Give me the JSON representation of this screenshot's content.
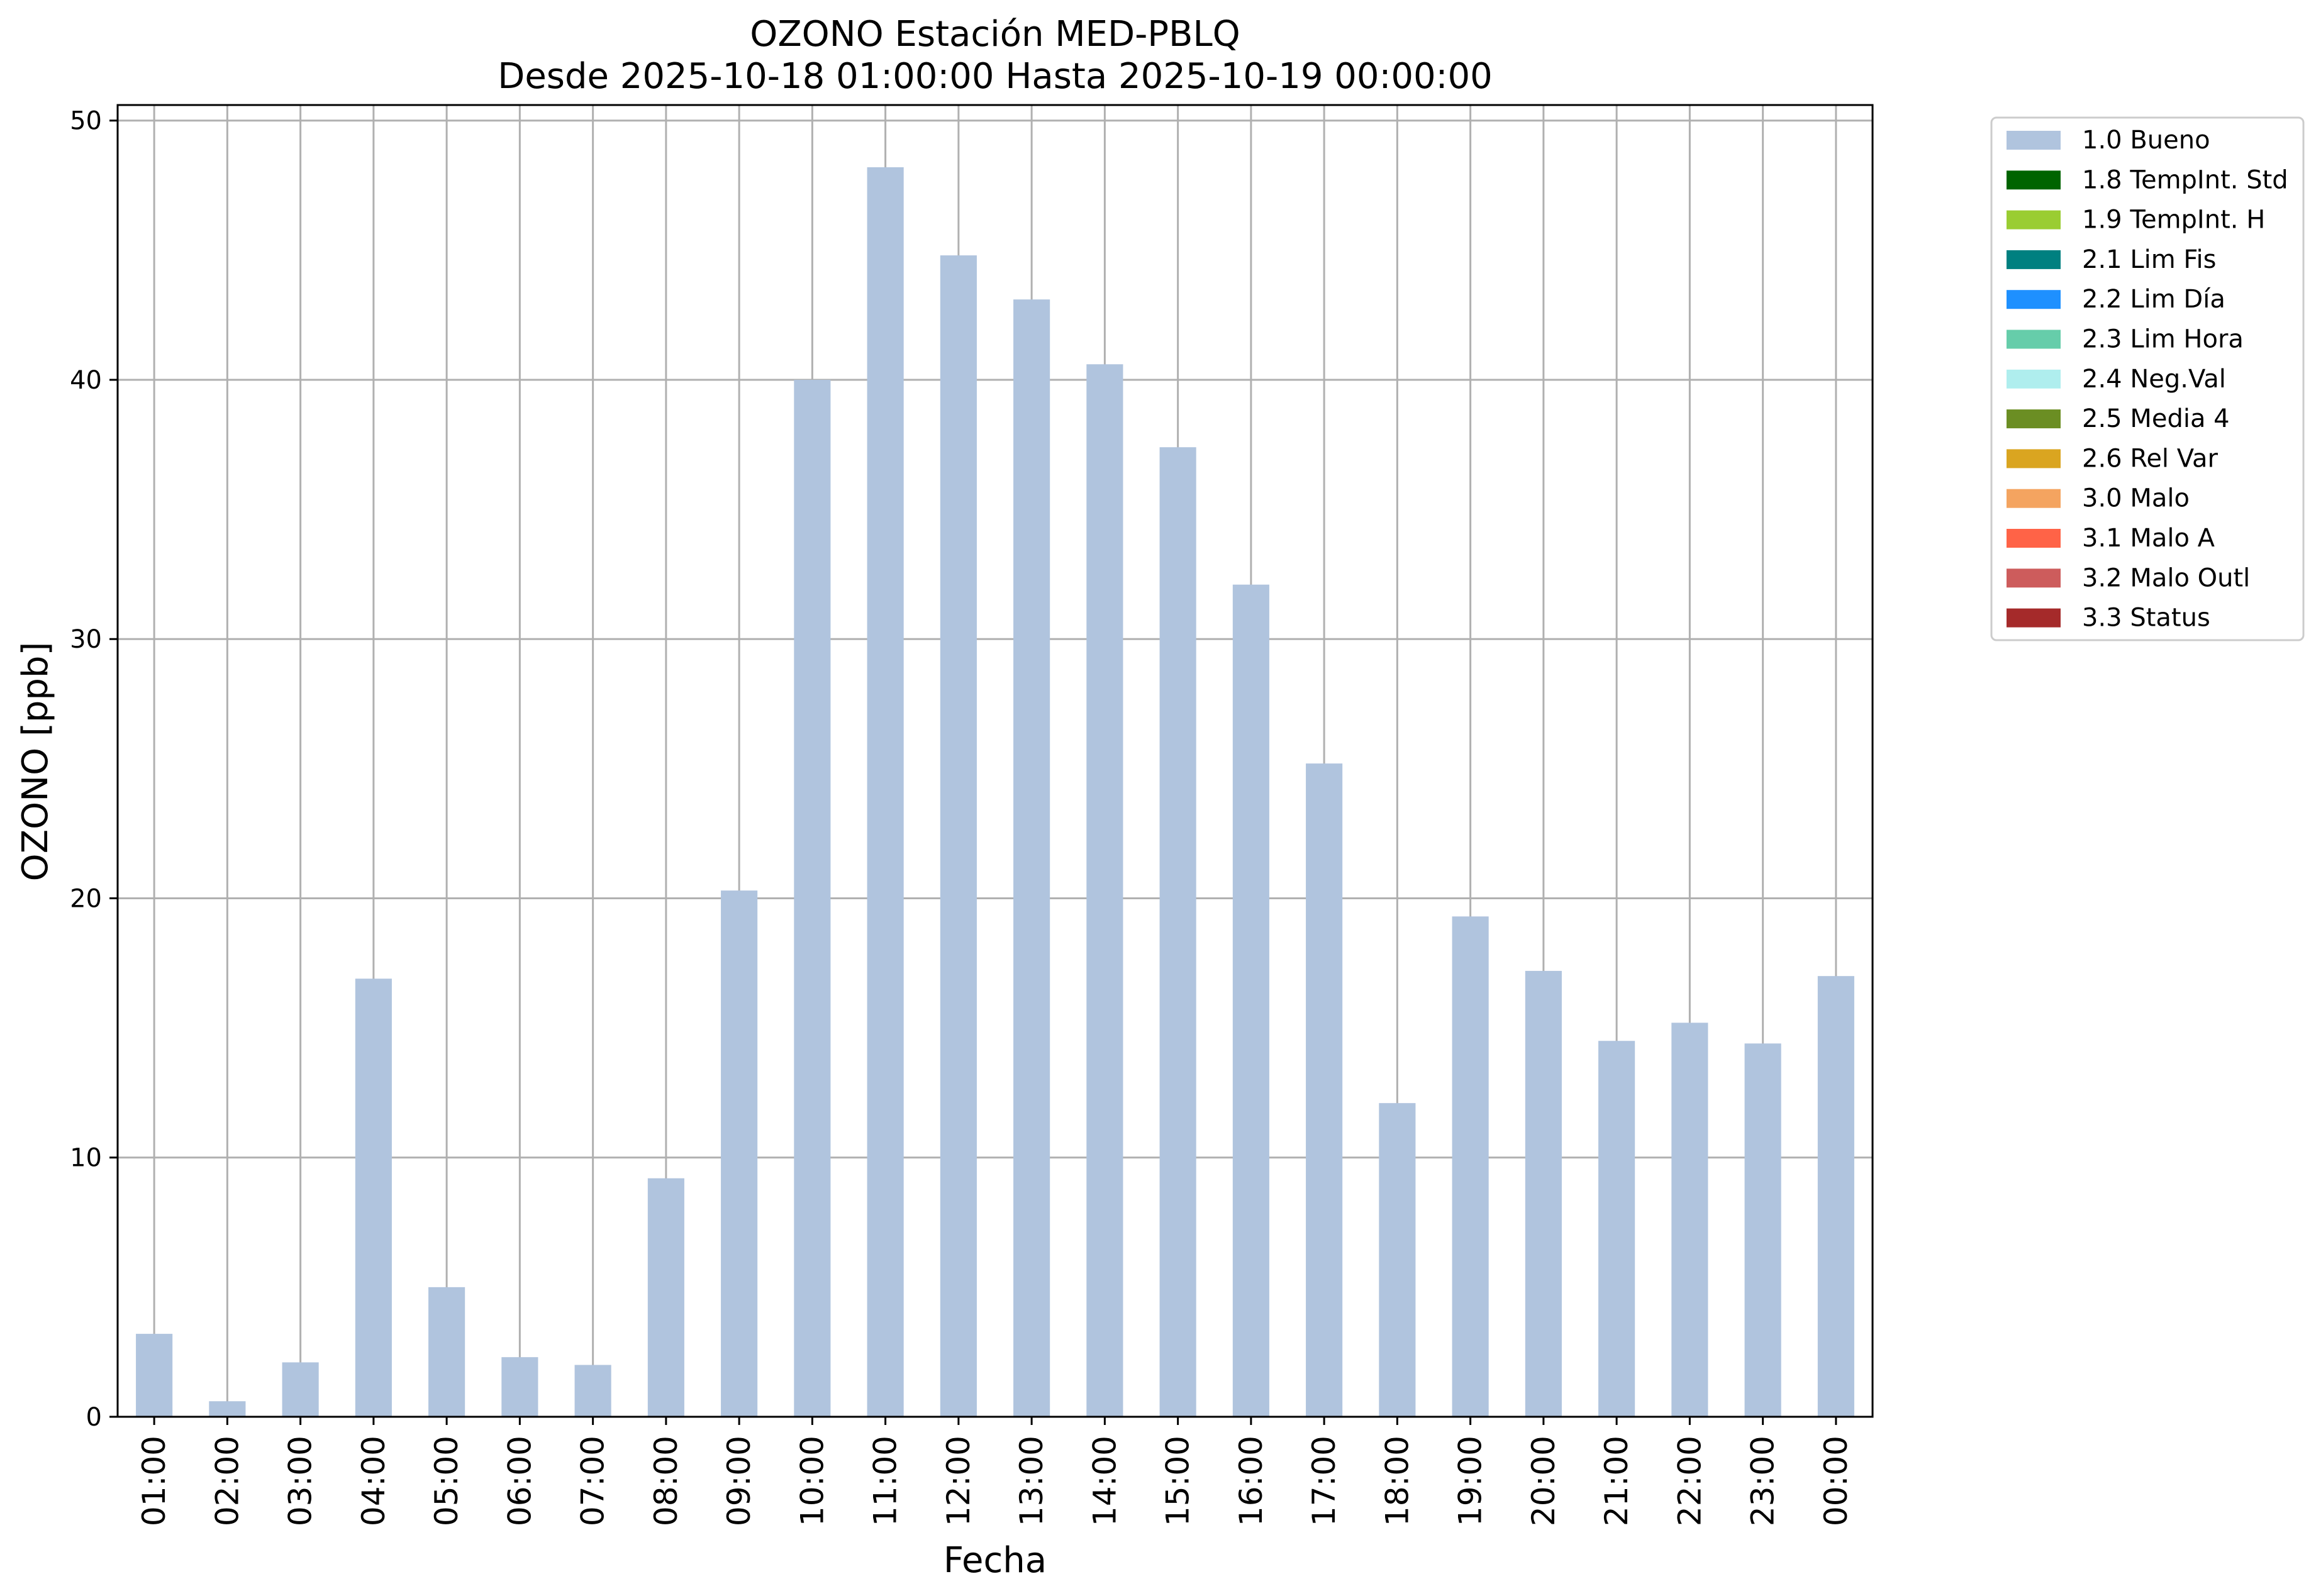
{
  "chart_data": {
    "type": "bar",
    "title": "OZONO Estación MED-PBLQ",
    "subtitle": "Desde 2025-10-18 01:00:00 Hasta 2025-10-19 00:00:00",
    "xlabel": "Fecha",
    "ylabel": "OZONO [ppb]",
    "ylim": [
      0,
      50.6
    ],
    "yticks": [
      0,
      10,
      20,
      30,
      40,
      50
    ],
    "grid": true,
    "legend_position": "outside-right-top",
    "categories": [
      "01:00",
      "02:00",
      "03:00",
      "04:00",
      "05:00",
      "06:00",
      "07:00",
      "08:00",
      "09:00",
      "10:00",
      "11:00",
      "12:00",
      "13:00",
      "14:00",
      "15:00",
      "16:00",
      "17:00",
      "18:00",
      "19:00",
      "20:00",
      "21:00",
      "22:00",
      "23:00",
      "00:00"
    ],
    "series": [
      {
        "name": "1.0 Bueno",
        "color": "#b0c4de",
        "values": [
          3.2,
          0.6,
          2.1,
          16.9,
          5.0,
          2.3,
          2.0,
          9.2,
          20.3,
          40.0,
          48.2,
          44.8,
          43.1,
          40.6,
          37.4,
          32.1,
          25.2,
          12.1,
          19.3,
          17.2,
          14.5,
          15.2,
          14.4,
          17.0
        ]
      }
    ],
    "legend": [
      {
        "label": "1.0 Bueno",
        "color": "#b0c4de"
      },
      {
        "label": "1.8 TempInt. Std",
        "color": "#006400"
      },
      {
        "label": "1.9 TempInt. H",
        "color": "#9acd32"
      },
      {
        "label": "2.1 Lim Fis",
        "color": "#008080"
      },
      {
        "label": "2.2 Lim Día",
        "color": "#1e90ff"
      },
      {
        "label": "2.3 Lim Hora",
        "color": "#66cdaa"
      },
      {
        "label": "2.4 Neg.Val",
        "color": "#afeeee"
      },
      {
        "label": "2.5 Media 4",
        "color": "#6b8e23"
      },
      {
        "label": "2.6 Rel Var",
        "color": "#daa520"
      },
      {
        "label": "3.0 Malo",
        "color": "#f4a460"
      },
      {
        "label": "3.1 Malo A",
        "color": "#ff6347"
      },
      {
        "label": "3.2 Malo Outl",
        "color": "#cd5c5c"
      },
      {
        "label": "3.3 Status",
        "color": "#a52a2a"
      }
    ]
  }
}
